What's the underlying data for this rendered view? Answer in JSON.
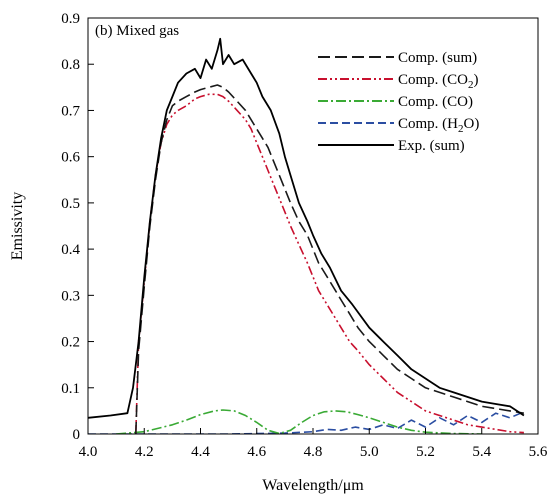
{
  "chart_data": {
    "type": "line",
    "panel_label": "(b) Mixed gas",
    "xlabel": "Wavelength/μm",
    "ylabel": "Emissivity",
    "xlim": [
      4.0,
      5.6
    ],
    "ylim": [
      0,
      0.9
    ],
    "x_ticks": [
      4.0,
      4.2,
      4.4,
      4.6,
      4.8,
      5.0,
      5.2,
      5.4,
      5.6
    ],
    "y_ticks": [
      0,
      0.1,
      0.2,
      0.3,
      0.4,
      0.5,
      0.6,
      0.7,
      0.8,
      0.9
    ],
    "x_tick_labels": [
      "4.0",
      "4.2",
      "4.4",
      "4.6",
      "4.8",
      "5.0",
      "5.2",
      "5.4",
      "5.6"
    ],
    "y_tick_labels": [
      "0",
      "0.1",
      "0.2",
      "0.3",
      "0.4",
      "0.5",
      "0.6",
      "0.7",
      "0.8",
      "0.9"
    ],
    "grid": false,
    "legend_position": "top-right",
    "series": [
      {
        "name": "Comp. (sum)",
        "name_main": "Comp. (sum)",
        "name_sub": "",
        "name_tail": "",
        "color": "#1a1a1a",
        "dash": "12 5",
        "x": [
          4.17,
          4.18,
          4.2,
          4.22,
          4.24,
          4.26,
          4.28,
          4.3,
          4.32,
          4.35,
          4.38,
          4.4,
          4.43,
          4.46,
          4.48,
          4.5,
          4.53,
          4.56,
          4.58,
          4.6,
          4.62,
          4.64,
          4.66,
          4.68,
          4.7,
          4.72,
          4.75,
          4.78,
          4.8,
          4.82,
          4.85,
          4.88,
          4.9,
          4.93,
          4.96,
          5.0,
          5.05,
          5.1,
          5.15,
          5.2,
          5.25,
          5.3,
          5.35,
          5.4,
          5.45,
          5.5,
          5.55
        ],
        "y": [
          0.0,
          0.18,
          0.32,
          0.45,
          0.55,
          0.63,
          0.68,
          0.71,
          0.72,
          0.73,
          0.74,
          0.745,
          0.75,
          0.755,
          0.75,
          0.74,
          0.72,
          0.7,
          0.68,
          0.66,
          0.64,
          0.62,
          0.59,
          0.56,
          0.53,
          0.5,
          0.46,
          0.43,
          0.4,
          0.37,
          0.34,
          0.31,
          0.29,
          0.26,
          0.23,
          0.2,
          0.17,
          0.14,
          0.12,
          0.1,
          0.09,
          0.08,
          0.07,
          0.06,
          0.055,
          0.05,
          0.045
        ]
      },
      {
        "name": "Comp. (CO2)",
        "name_main": "Comp. (CO",
        "name_sub": "2",
        "name_tail": ")",
        "color": "#c8102e",
        "dash": "9 3 2 3 2 3",
        "x": [
          4.17,
          4.18,
          4.2,
          4.22,
          4.24,
          4.26,
          4.28,
          4.3,
          4.32,
          4.35,
          4.38,
          4.4,
          4.43,
          4.46,
          4.48,
          4.5,
          4.53,
          4.56,
          4.58,
          4.6,
          4.62,
          4.64,
          4.66,
          4.68,
          4.7,
          4.72,
          4.75,
          4.78,
          4.8,
          4.82,
          4.85,
          4.88,
          4.9,
          4.93,
          4.96,
          5.0,
          5.05,
          5.1,
          5.15,
          5.2,
          5.25,
          5.3,
          5.35,
          5.4,
          5.45,
          5.5,
          5.55
        ],
        "y": [
          0.0,
          0.2,
          0.33,
          0.46,
          0.56,
          0.63,
          0.67,
          0.69,
          0.7,
          0.71,
          0.725,
          0.73,
          0.735,
          0.735,
          0.73,
          0.72,
          0.7,
          0.68,
          0.66,
          0.63,
          0.6,
          0.57,
          0.54,
          0.51,
          0.48,
          0.45,
          0.41,
          0.37,
          0.34,
          0.31,
          0.28,
          0.25,
          0.23,
          0.2,
          0.18,
          0.15,
          0.12,
          0.09,
          0.07,
          0.05,
          0.04,
          0.03,
          0.02,
          0.015,
          0.01,
          0.005,
          0.003
        ]
      },
      {
        "name": "Comp. (CO)",
        "name_main": "Comp. (CO)",
        "name_sub": "",
        "name_tail": "",
        "color": "#3aaa35",
        "dash": "10 3 2 3",
        "x": [
          4.1,
          4.2,
          4.3,
          4.35,
          4.4,
          4.45,
          4.48,
          4.52,
          4.56,
          4.6,
          4.64,
          4.68,
          4.72,
          4.76,
          4.8,
          4.84,
          4.88,
          4.92,
          4.96,
          5.0,
          5.05,
          5.1,
          5.15,
          5.2,
          5.3,
          5.4
        ],
        "y": [
          0.0,
          0.005,
          0.02,
          0.03,
          0.042,
          0.05,
          0.052,
          0.05,
          0.04,
          0.025,
          0.008,
          0.001,
          0.008,
          0.025,
          0.04,
          0.048,
          0.05,
          0.048,
          0.042,
          0.035,
          0.025,
          0.015,
          0.008,
          0.004,
          0.001,
          0.0
        ]
      },
      {
        "name": "Comp. (H2O)",
        "name_main": "Comp. (H",
        "name_sub": "2",
        "name_tail": "O)",
        "color": "#2b4ea2",
        "dash": "8 4",
        "x": [
          4.0,
          4.5,
          4.7,
          4.8,
          4.85,
          4.9,
          4.95,
          5.0,
          5.05,
          5.1,
          5.15,
          5.2,
          5.25,
          5.3,
          5.35,
          5.4,
          5.45,
          5.5,
          5.55
        ],
        "y": [
          0.0,
          0.0,
          0.002,
          0.005,
          0.01,
          0.008,
          0.015,
          0.01,
          0.02,
          0.012,
          0.03,
          0.015,
          0.035,
          0.02,
          0.04,
          0.025,
          0.045,
          0.035,
          0.048
        ]
      },
      {
        "name": "Exp. (sum)",
        "name_main": "Exp. (sum)",
        "name_sub": "",
        "name_tail": "",
        "color": "#000000",
        "dash": "",
        "x": [
          4.0,
          4.08,
          4.14,
          4.16,
          4.18,
          4.2,
          4.22,
          4.24,
          4.26,
          4.28,
          4.3,
          4.32,
          4.35,
          4.38,
          4.4,
          4.42,
          4.44,
          4.46,
          4.47,
          4.48,
          4.5,
          4.52,
          4.55,
          4.58,
          4.6,
          4.62,
          4.65,
          4.68,
          4.7,
          4.72,
          4.75,
          4.78,
          4.8,
          4.83,
          4.86,
          4.9,
          4.94,
          5.0,
          5.05,
          5.1,
          5.15,
          5.2,
          5.25,
          5.3,
          5.35,
          5.4,
          5.45,
          5.5,
          5.55
        ],
        "y": [
          0.035,
          0.04,
          0.045,
          0.1,
          0.2,
          0.34,
          0.46,
          0.56,
          0.64,
          0.7,
          0.73,
          0.76,
          0.78,
          0.79,
          0.77,
          0.81,
          0.79,
          0.83,
          0.855,
          0.8,
          0.82,
          0.8,
          0.81,
          0.78,
          0.76,
          0.73,
          0.7,
          0.65,
          0.6,
          0.56,
          0.5,
          0.46,
          0.43,
          0.39,
          0.36,
          0.31,
          0.28,
          0.23,
          0.2,
          0.17,
          0.14,
          0.12,
          0.1,
          0.09,
          0.08,
          0.07,
          0.065,
          0.06,
          0.04
        ]
      }
    ]
  }
}
